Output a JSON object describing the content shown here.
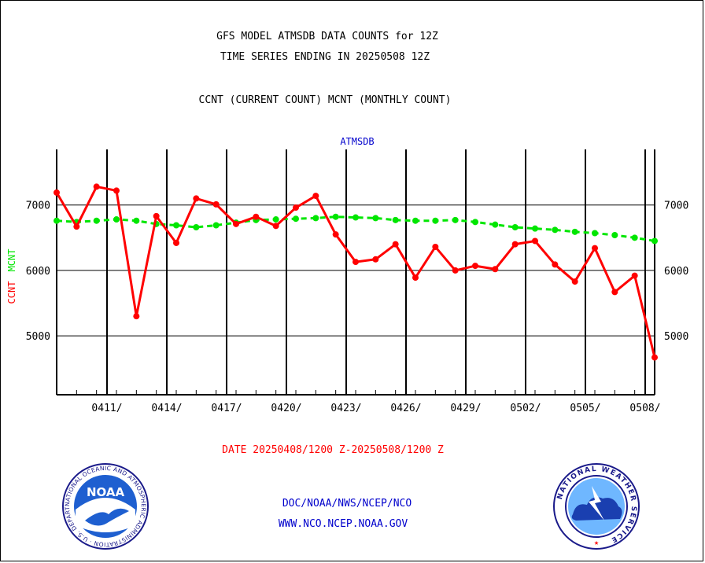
{
  "header": {
    "title_line1": "GFS MODEL ATMSDB DATA COUNTS for 12Z",
    "title_line2": "TIME SERIES ENDING IN 20250508 12Z",
    "subtitle": "CCNT (CURRENT COUNT) MCNT (MONTHLY COUNT)"
  },
  "footer": {
    "date_range": "DATE 20250408/1200 Z-20250508/1200 Z",
    "org_path": "DOC/NOAA/NWS/NCEP/NCO",
    "website": "WWW.NCO.NCEP.NOAA.GOV",
    "noaa_logo_text": "NOAA",
    "noaa_ring_text": "NATIONAL OCEANIC AND ATMOSPHERIC ADMINISTRATION · U.S. DEPARTMENT OF COMMERCE ·",
    "nws_ring_text": "NATIONAL WEATHER SERVICE"
  },
  "colors": {
    "ccnt": "#ff0000",
    "mcnt": "#00e600",
    "panel_label": "#0000cc",
    "footer_red": "#ff0000",
    "footer_blue": "#0000cc"
  },
  "chart_data": {
    "type": "line",
    "panel_label": "ATMSDB",
    "ylabel_ccnt": "CCNT",
    "ylabel_mcnt": "MCNT",
    "ylim": [
      4100,
      7850
    ],
    "yticks": [
      5000,
      6000,
      7000
    ],
    "xlim": [
      0,
      30
    ],
    "xticks": [
      {
        "day": 3,
        "label": "0411/"
      },
      {
        "day": 6,
        "label": "0414/"
      },
      {
        "day": 9,
        "label": "0417/"
      },
      {
        "day": 12,
        "label": "0420/"
      },
      {
        "day": 15,
        "label": "0423/"
      },
      {
        "day": 18,
        "label": "0426/"
      },
      {
        "day": 21,
        "label": "0429/"
      },
      {
        "day": 24,
        "label": "0502/"
      },
      {
        "day": 27,
        "label": "0505/"
      },
      {
        "day": 30,
        "label": "0508/"
      }
    ],
    "grid": true,
    "series": [
      {
        "name": "CCNT",
        "values": [
          7190,
          6670,
          7280,
          7220,
          5300,
          6830,
          6420,
          7100,
          7010,
          6710,
          6820,
          6680,
          6960,
          7140,
          6550,
          6130,
          6170,
          6400,
          5890,
          6360,
          6000,
          6070,
          6020,
          6400,
          6450,
          6090,
          5830,
          6340,
          5670,
          5920,
          4670
        ]
      },
      {
        "name": "MCNT",
        "values": [
          6760,
          6740,
          6760,
          6780,
          6760,
          6710,
          6690,
          6660,
          6690,
          6730,
          6770,
          6780,
          6790,
          6800,
          6820,
          6810,
          6800,
          6770,
          6760,
          6760,
          6770,
          6740,
          6700,
          6660,
          6640,
          6620,
          6590,
          6570,
          6540,
          6500,
          6450
        ]
      }
    ]
  }
}
